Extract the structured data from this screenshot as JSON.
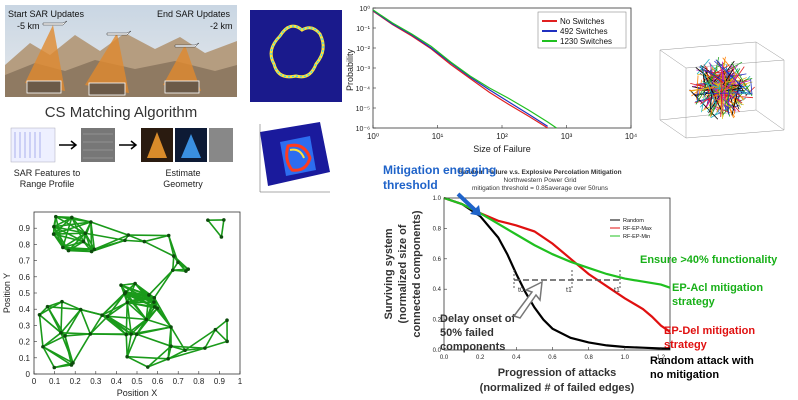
{
  "sar": {
    "start_label": "Start SAR Updates",
    "start_km": "-5 km",
    "end_label": "End SAR Updates",
    "end_km": "-2 km",
    "algorithm_title": "CS Matching Algorithm",
    "step1_line1": "SAR Features to",
    "step1_line2": "Range Profile",
    "step2_line1": "Estimate",
    "step2_line2": "Geometry",
    "colors": {
      "cone": "#e0892e",
      "mountain": "#b8a083",
      "sky": "#cfd8e2"
    }
  },
  "annotations": {
    "mitigation_threshold_line1": "Mitigation engaging",
    "mitigation_threshold_line2": "threshold",
    "ensure_functionality": "Ensure >40% functionality",
    "ep_acl_line1": "EP-Acl mitigation",
    "ep_acl_line2": "strategy",
    "ep_del_line1": "EP-Del mitigation",
    "ep_del_line2": "strategy",
    "random_line1": "Random attack with",
    "random_line2": "no mitigation",
    "delay_line1": "Delay onset of",
    "delay_line2": "50% failed",
    "delay_line3": "components",
    "t0": "t0",
    "t1": "t1",
    "t2": "t1"
  },
  "chart_data": [
    {
      "type": "scatter",
      "id": "network-positions",
      "xlabel": "Position X",
      "ylabel": "Position Y",
      "xlim": [
        0,
        1
      ],
      "ylim": [
        0,
        1
      ],
      "xticks": [
        "0",
        "0.1",
        "0.2",
        "0.3",
        "0.4",
        "0.5",
        "0.6",
        "0.7",
        "0.8",
        "0.9",
        "1"
      ],
      "yticks": [
        "0",
        "0.1",
        "0.2",
        "0.3",
        "0.4",
        "0.5",
        "0.6",
        "0.7",
        "0.8",
        "0.9"
      ],
      "grid": false,
      "edge_color": "#1a9a1a",
      "node_count": 60
    },
    {
      "type": "line",
      "id": "failure-size-distribution",
      "xlabel": "Size of Failure",
      "ylabel": "Probability",
      "log_x": true,
      "log_y": true,
      "xticks": [
        "10⁰",
        "10¹",
        "10²",
        "10³",
        "10⁴"
      ],
      "yticks": [
        "10⁰",
        "10⁻¹",
        "10⁻²",
        "10⁻³",
        "10⁻⁴",
        "10⁻⁵",
        "10⁻⁶"
      ],
      "xlim": [
        1,
        10000
      ],
      "ylim": [
        1e-06,
        1
      ],
      "legend_position": "top-right",
      "series": [
        {
          "name": "No Switches",
          "color": "#e02020",
          "x": [
            1,
            2,
            4,
            8,
            16,
            32,
            64,
            128,
            256,
            512
          ],
          "y": [
            0.7,
            0.15,
            0.04,
            0.009,
            0.0015,
            0.0003,
            6e-05,
            1.5e-05,
            4e-06,
            1e-06
          ]
        },
        {
          "name": "492 Switches",
          "color": "#2030c0",
          "x": [
            1,
            2,
            4,
            8,
            16,
            32,
            64,
            128,
            256,
            512
          ],
          "y": [
            0.75,
            0.16,
            0.045,
            0.01,
            0.0018,
            0.00035,
            8e-05,
            2e-05,
            5e-06,
            1.2e-06
          ]
        },
        {
          "name": "1230 Switches",
          "color": "#20c020",
          "x": [
            1,
            2,
            4,
            8,
            16,
            32,
            64,
            128,
            256,
            512,
            700
          ],
          "y": [
            0.8,
            0.18,
            0.05,
            0.012,
            0.002,
            0.0004,
            0.0001,
            3e-05,
            8e-06,
            2e-06,
            1e-06
          ]
        }
      ]
    },
    {
      "type": "line",
      "id": "percolation-mitigation",
      "title": "Random Failure v.s. Explosive Percolation Mitigation",
      "subtitle1": "Northwestern Power Grid",
      "subtitle2": "mitigation threshold = 0.85average over 50runs",
      "xlabel_line1": "Progression of attacks",
      "xlabel_line2": "(normalized # of failed edges)",
      "ylabel_line1": "Surviving system",
      "ylabel_line2": "(normalized size of",
      "ylabel_line3": "connected components)",
      "xlim": [
        0,
        1.25
      ],
      "ylim": [
        0,
        1
      ],
      "xticks": [
        "0.0",
        "0.2",
        "0.4",
        "0.6",
        "0.8",
        "1.0",
        "1.2"
      ],
      "yticks": [
        "0.0",
        "0.2",
        "0.4",
        "0.6",
        "0.8",
        "1.0"
      ],
      "legend_position": "top-left",
      "series": [
        {
          "name": "Random",
          "color": "#000000",
          "x": [
            0,
            0.1,
            0.2,
            0.3,
            0.35,
            0.4,
            0.45,
            0.5,
            0.55,
            0.6,
            0.7,
            0.8,
            0.9,
            1.0,
            1.1,
            1.2,
            1.25
          ],
          "y": [
            1.0,
            0.96,
            0.88,
            0.74,
            0.63,
            0.5,
            0.38,
            0.28,
            0.2,
            0.14,
            0.08,
            0.05,
            0.03,
            0.02,
            0.015,
            0.01,
            0.01
          ]
        },
        {
          "name": "RF-EP-Max",
          "color": "#e01010",
          "x": [
            0,
            0.1,
            0.2,
            0.3,
            0.4,
            0.5,
            0.6,
            0.7,
            0.8,
            0.9,
            1.0,
            1.1,
            1.15,
            1.2,
            1.25
          ],
          "y": [
            1.0,
            0.96,
            0.9,
            0.85,
            0.82,
            0.78,
            0.7,
            0.6,
            0.5,
            0.42,
            0.34,
            0.27,
            0.22,
            0.16,
            0.12
          ]
        },
        {
          "name": "RF-EP-Min",
          "color": "#20c020",
          "x": [
            0,
            0.1,
            0.2,
            0.3,
            0.4,
            0.5,
            0.6,
            0.7,
            0.8,
            0.9,
            1.0,
            1.1,
            1.2,
            1.25
          ],
          "y": [
            1.0,
            0.96,
            0.9,
            0.83,
            0.76,
            0.69,
            0.63,
            0.58,
            0.54,
            0.5,
            0.47,
            0.45,
            0.43,
            0.41
          ]
        }
      ],
      "threshold_y": 0.5
    }
  ]
}
